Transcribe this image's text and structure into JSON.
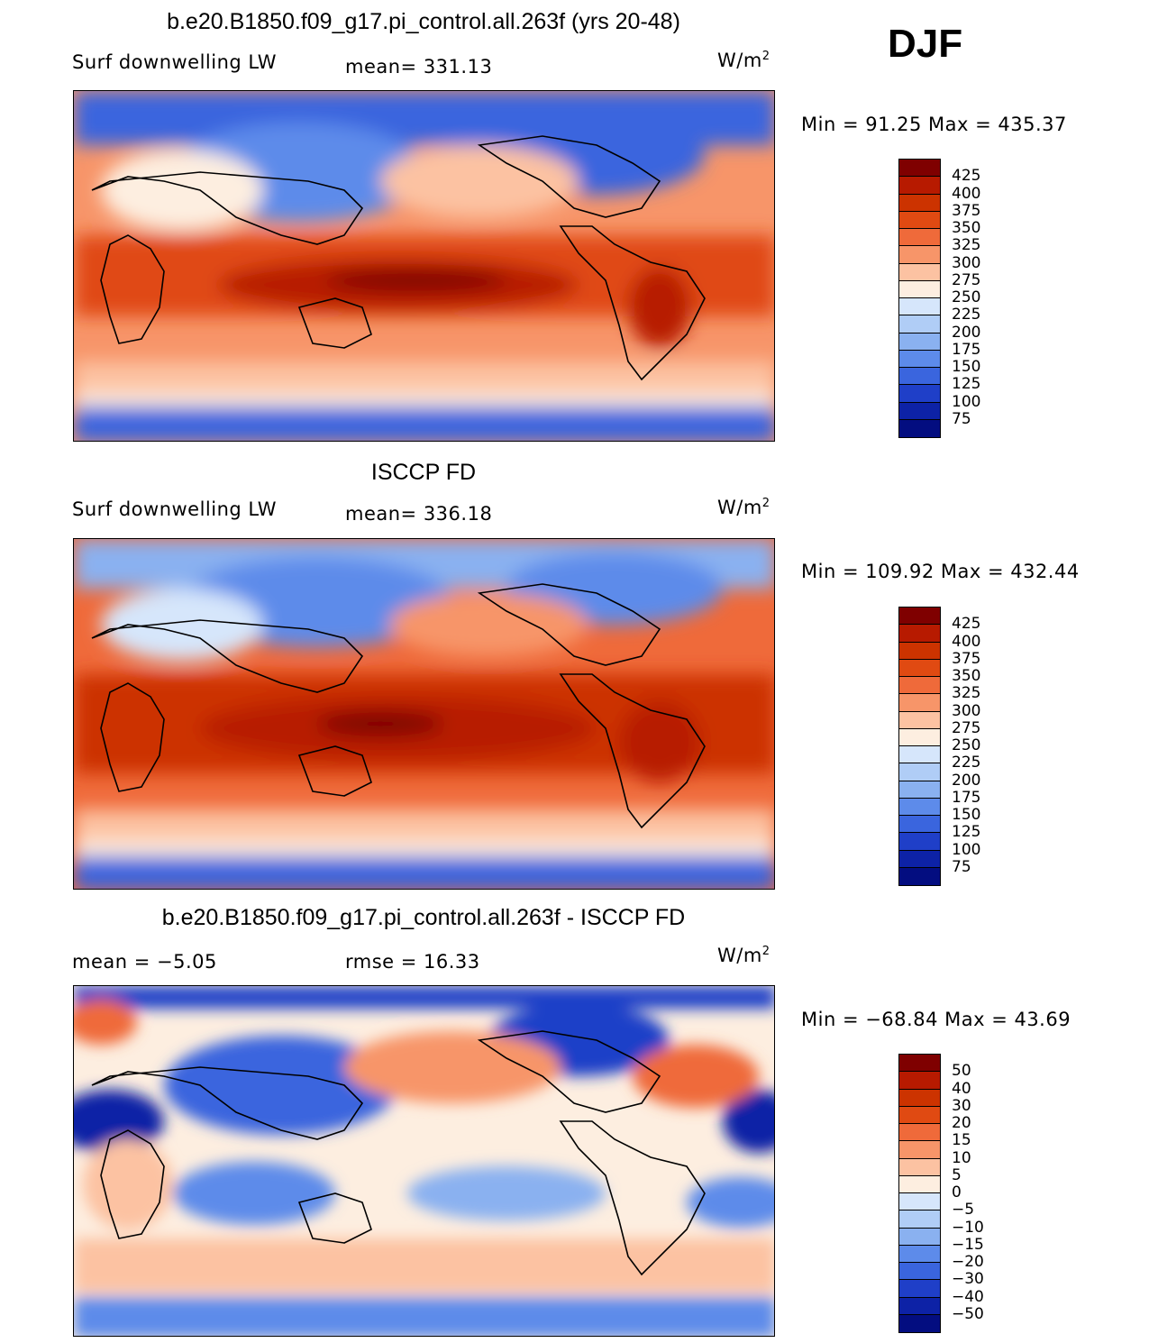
{
  "season": "DJF",
  "panels": [
    {
      "title": "b.e20.B1850.f09_g17.pi_control.all.263f (yrs 20-48)",
      "left_label": "Surf downwelling LW",
      "center_label": "mean=  331.13",
      "units": "W/m",
      "units_sup": "2",
      "minmax": "Min =   91.25  Max =  435.37",
      "levels": [
        "425",
        "400",
        "375",
        "350",
        "325",
        "300",
        "275",
        "250",
        "225",
        "200",
        "175",
        "150",
        "125",
        "100",
        "75"
      ],
      "colors": [
        "#7f0000",
        "#b71a00",
        "#cc3300",
        "#e04a12",
        "#ef6a3a",
        "#f79569",
        "#fcc2a2",
        "#fdeee0",
        "#d6e6fb",
        "#b0cdf6",
        "#8ab1f0",
        "#5d8bea",
        "#3a65de",
        "#1f3fc8",
        "#0d22a6",
        "#030d80"
      ]
    },
    {
      "title": "ISCCP FD",
      "left_label": "Surf downwelling LW",
      "center_label": "mean=  336.18",
      "units": "W/m",
      "units_sup": "2",
      "minmax": "Min =  109.92  Max =  432.44",
      "levels": [
        "425",
        "400",
        "375",
        "350",
        "325",
        "300",
        "275",
        "250",
        "225",
        "200",
        "175",
        "150",
        "125",
        "100",
        "75"
      ],
      "colors": [
        "#7f0000",
        "#b71a00",
        "#cc3300",
        "#e04a12",
        "#ef6a3a",
        "#f79569",
        "#fcc2a2",
        "#fdeee0",
        "#d6e6fb",
        "#b0cdf6",
        "#8ab1f0",
        "#5d8bea",
        "#3a65de",
        "#1f3fc8",
        "#0d22a6",
        "#030d80"
      ]
    },
    {
      "title": "b.e20.B1850.f09_g17.pi_control.all.263f - ISCCP FD",
      "left_label": "mean =   −5.05",
      "center_label": "rmse =    16.33",
      "units": "W/m",
      "units_sup": "2",
      "minmax": "Min =  −68.84  Max =    43.69",
      "levels": [
        "50",
        "40",
        "30",
        "20",
        "15",
        "10",
        "5",
        "0",
        "−5",
        "−10",
        "−15",
        "−20",
        "−30",
        "−40",
        "−50"
      ],
      "colors": [
        "#7f0000",
        "#b71a00",
        "#cc3300",
        "#e04a12",
        "#ef6a3a",
        "#f79569",
        "#fcc2a2",
        "#fdeee0",
        "#d6e6fb",
        "#b0cdf6",
        "#8ab1f0",
        "#5d8bea",
        "#3a65de",
        "#1f3fc8",
        "#0d22a6",
        "#030d80"
      ]
    }
  ]
}
